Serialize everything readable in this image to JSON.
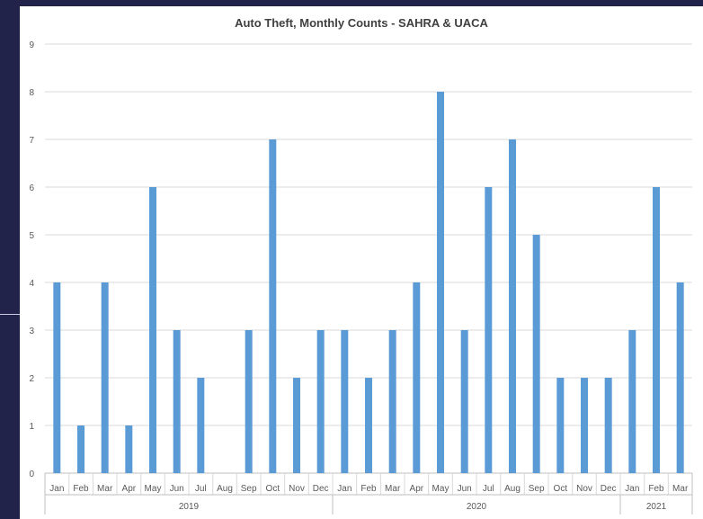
{
  "chart_data": {
    "type": "bar",
    "title": "Auto Theft, Monthly Counts - SAHRA & UACA",
    "xlabel": "",
    "ylabel": "",
    "ylim": [
      0,
      9
    ],
    "yticks": [
      "0",
      "1",
      "2",
      "3",
      "4",
      "5",
      "6",
      "7",
      "8",
      "9"
    ],
    "grid": true,
    "legend": "none",
    "bar_color": "#5b9bd5",
    "categories": [
      "Jan",
      "Feb",
      "Mar",
      "Apr",
      "May",
      "Jun",
      "Jul",
      "Aug",
      "Sep",
      "Oct",
      "Nov",
      "Dec",
      "Jan",
      "Feb",
      "Mar",
      "Apr",
      "May",
      "Jun",
      "Jul",
      "Aug",
      "Sep",
      "Oct",
      "Nov",
      "Dec",
      "Jan",
      "Feb",
      "Mar"
    ],
    "values": [
      4,
      1,
      4,
      1,
      6,
      3,
      2,
      0,
      3,
      7,
      2,
      3,
      3,
      2,
      3,
      4,
      8,
      3,
      6,
      7,
      5,
      2,
      2,
      2,
      3,
      6,
      4
    ],
    "year_groups": [
      {
        "label": "2019",
        "count": 12
      },
      {
        "label": "2020",
        "count": 12
      },
      {
        "label": "2021",
        "count": 3
      }
    ]
  }
}
